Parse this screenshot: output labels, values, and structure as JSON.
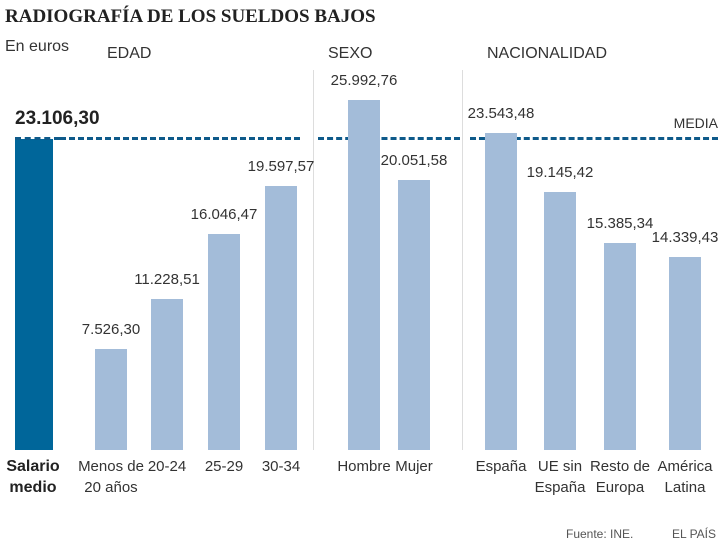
{
  "chart_data": {
    "type": "bar",
    "title": "RADIOGRAFÍA DE LOS SUELDOS BAJOS",
    "subtitle": "En euros",
    "average": {
      "label": "Salario\nmedio",
      "value": 23106.3,
      "value_label": "23.106,30",
      "line_label": "MEDIA",
      "color": "#00669a"
    },
    "color": "#a3bcd9",
    "groups": [
      {
        "name": "EDAD",
        "categories": [
          "Menos de\n20 años",
          "20-24",
          "25-29",
          "30-34"
        ],
        "values": [
          7526.3,
          11228.51,
          16046.47,
          19597.57
        ],
        "value_labels": [
          "7.526,30",
          "11.228,51",
          "16.046,47",
          "19.597,57"
        ]
      },
      {
        "name": "SEXO",
        "categories": [
          "Hombre",
          "Mujer"
        ],
        "values": [
          25992.76,
          20051.58
        ],
        "value_labels": [
          "25.992,76",
          "20.051,58"
        ]
      },
      {
        "name": "NACIONALIDAD",
        "categories": [
          "España",
          "UE sin\nEspaña",
          "Resto de\nEuropa",
          "América\nLatina"
        ],
        "values": [
          23543.48,
          19145.42,
          15385.34,
          14339.43
        ],
        "value_labels": [
          "23.543,48",
          "19.145,42",
          "15.385,34",
          "14.339,43"
        ]
      }
    ],
    "source": "Fuente: INE.",
    "credit": "EL PAÍS"
  }
}
